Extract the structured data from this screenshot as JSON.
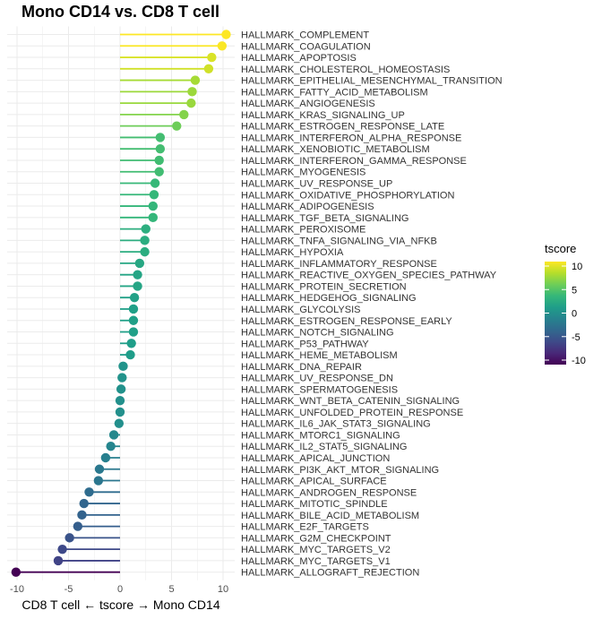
{
  "chart_data": {
    "type": "lollipop",
    "title": "Mono CD14 vs. CD8 T cell",
    "xlabel": "CD8 T cell ← tscore → Mono CD14",
    "ylabel": "",
    "xlim": [
      -11,
      11
    ],
    "x_ticks": [
      -10,
      -5,
      0,
      5,
      10
    ],
    "grid": true,
    "legend": {
      "title": "tscore",
      "position": "right",
      "ticks": [
        10,
        5,
        0,
        -5,
        -10
      ],
      "range": [
        -10,
        10
      ],
      "colors": [
        "#440154",
        "#482878",
        "#3e4a89",
        "#31688e",
        "#26828e",
        "#1f9e89",
        "#35b779",
        "#6ece58",
        "#b5de2b",
        "#fde725"
      ]
    },
    "categories": [
      "HALLMARK_COMPLEMENT",
      "HALLMARK_COAGULATION",
      "HALLMARK_APOPTOSIS",
      "HALLMARK_CHOLESTEROL_HOMEOSTASIS",
      "HALLMARK_EPITHELIAL_MESENCHYMAL_TRANSITION",
      "HALLMARK_FATTY_ACID_METABOLISM",
      "HALLMARK_ANGIOGENESIS",
      "HALLMARK_KRAS_SIGNALING_UP",
      "HALLMARK_ESTROGEN_RESPONSE_LATE",
      "HALLMARK_INTERFERON_ALPHA_RESPONSE",
      "HALLMARK_XENOBIOTIC_METABOLISM",
      "HALLMARK_INTERFERON_GAMMA_RESPONSE",
      "HALLMARK_MYOGENESIS",
      "HALLMARK_UV_RESPONSE_UP",
      "HALLMARK_OXIDATIVE_PHOSPHORYLATION",
      "HALLMARK_ADIPOGENESIS",
      "HALLMARK_TGF_BETA_SIGNALING",
      "HALLMARK_PEROXISOME",
      "HALLMARK_TNFA_SIGNALING_VIA_NFKB",
      "HALLMARK_HYPOXIA",
      "HALLMARK_INFLAMMATORY_RESPONSE",
      "HALLMARK_REACTIVE_OXYGEN_SPECIES_PATHWAY",
      "HALLMARK_PROTEIN_SECRETION",
      "HALLMARK_HEDGEHOG_SIGNALING",
      "HALLMARK_GLYCOLYSIS",
      "HALLMARK_ESTROGEN_RESPONSE_EARLY",
      "HALLMARK_NOTCH_SIGNALING",
      "HALLMARK_P53_PATHWAY",
      "HALLMARK_HEME_METABOLISM",
      "HALLMARK_DNA_REPAIR",
      "HALLMARK_UV_RESPONSE_DN",
      "HALLMARK_SPERMATOGENESIS",
      "HALLMARK_WNT_BETA_CATENIN_SIGNALING",
      "HALLMARK_UNFOLDED_PROTEIN_RESPONSE",
      "HALLMARK_IL6_JAK_STAT3_SIGNALING",
      "HALLMARK_MTORC1_SIGNALING",
      "HALLMARK_IL2_STAT5_SIGNALING",
      "HALLMARK_APICAL_JUNCTION",
      "HALLMARK_PI3K_AKT_MTOR_SIGNALING",
      "HALLMARK_APICAL_SURFACE",
      "HALLMARK_ANDROGEN_RESPONSE",
      "HALLMARK_MITOTIC_SPINDLE",
      "HALLMARK_BILE_ACID_METABOLISM",
      "HALLMARK_E2F_TARGETS",
      "HALLMARK_G2M_CHECKPOINT",
      "HALLMARK_MYC_TARGETS_V2",
      "HALLMARK_MYC_TARGETS_V1",
      "HALLMARK_ALLOGRAFT_REJECTION"
    ],
    "values": [
      10.3,
      9.9,
      8.9,
      8.6,
      7.3,
      7.0,
      6.9,
      6.2,
      5.5,
      3.9,
      3.9,
      3.8,
      3.8,
      3.4,
      3.3,
      3.2,
      3.2,
      2.5,
      2.4,
      2.4,
      1.9,
      1.7,
      1.7,
      1.4,
      1.3,
      1.3,
      1.3,
      1.1,
      1.0,
      0.3,
      0.2,
      0.1,
      0.0,
      0.0,
      -0.1,
      -0.6,
      -0.9,
      -1.4,
      -2.0,
      -2.1,
      -3.0,
      -3.5,
      -3.7,
      -4.1,
      -4.9,
      -5.6,
      -6.0,
      -10.1
    ]
  }
}
